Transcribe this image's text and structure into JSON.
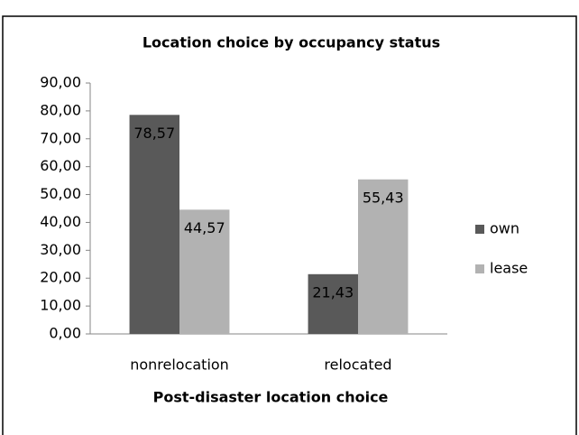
{
  "chart_data": {
    "type": "bar",
    "title": "Location choice by occupancy status",
    "x_label": "Post-disaster location choice",
    "categories": [
      "nonrelocation",
      "relocated"
    ],
    "series": [
      {
        "name": "own",
        "color": "#595959",
        "values": [
          78.57,
          21.43
        ],
        "value_labels": [
          "78,57",
          "21,43"
        ]
      },
      {
        "name": "lease",
        "color": "#b2b2b2",
        "values": [
          44.57,
          55.43
        ],
        "value_labels": [
          "44,57",
          "55,43"
        ]
      }
    ],
    "ylim": [
      0,
      90
    ],
    "yticks": [
      {
        "value": 0,
        "label": "0,00"
      },
      {
        "value": 10,
        "label": "10,00"
      },
      {
        "value": 20,
        "label": "20,00"
      },
      {
        "value": 30,
        "label": "30,00"
      },
      {
        "value": 40,
        "label": "40,00"
      },
      {
        "value": 50,
        "label": "50,00"
      },
      {
        "value": 60,
        "label": "60,00"
      },
      {
        "value": 70,
        "label": "70,00"
      },
      {
        "value": 80,
        "label": "80,00"
      },
      {
        "value": 90,
        "label": "90,00"
      }
    ],
    "legend": "right"
  }
}
